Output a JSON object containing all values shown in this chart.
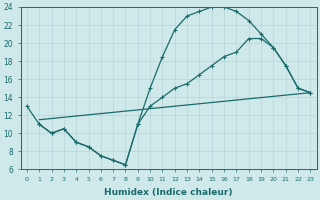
{
  "xlabel": "Humidex (Indice chaleur)",
  "background_color": "#cfe8ea",
  "grid_color": "#b8d4d6",
  "line_color": "#1a6b6b",
  "x_min": 0,
  "x_max": 23,
  "y_min": 6,
  "y_max": 24,
  "series1_x": [
    0,
    1,
    2,
    3,
    4,
    5,
    6,
    7,
    8,
    9,
    10,
    11,
    12,
    13,
    14,
    15,
    16,
    17,
    18,
    19,
    20,
    21,
    22,
    23
  ],
  "series1_y": [
    13,
    11,
    10,
    10.5,
    9,
    8.5,
    7.5,
    7,
    6.5,
    11,
    15,
    18.5,
    21.5,
    23,
    23.5,
    24,
    24,
    23.5,
    22.5,
    21,
    19.5,
    17.5,
    15,
    14.5
  ],
  "series2_x": [
    1,
    2,
    3,
    4,
    5,
    6,
    7,
    8,
    9,
    10,
    11,
    12,
    13,
    14,
    15,
    16,
    17,
    18,
    19,
    20,
    21,
    22,
    23
  ],
  "series2_y": [
    11,
    10,
    10.5,
    9,
    8.5,
    7.5,
    7,
    6.5,
    11,
    13,
    14,
    15,
    15.5,
    16.5,
    17.5,
    18.5,
    19,
    20.5,
    20.5,
    19.5,
    17.5,
    15,
    14.5
  ],
  "series3_x": [
    1,
    23
  ],
  "series3_y": [
    11.5,
    14.5
  ]
}
